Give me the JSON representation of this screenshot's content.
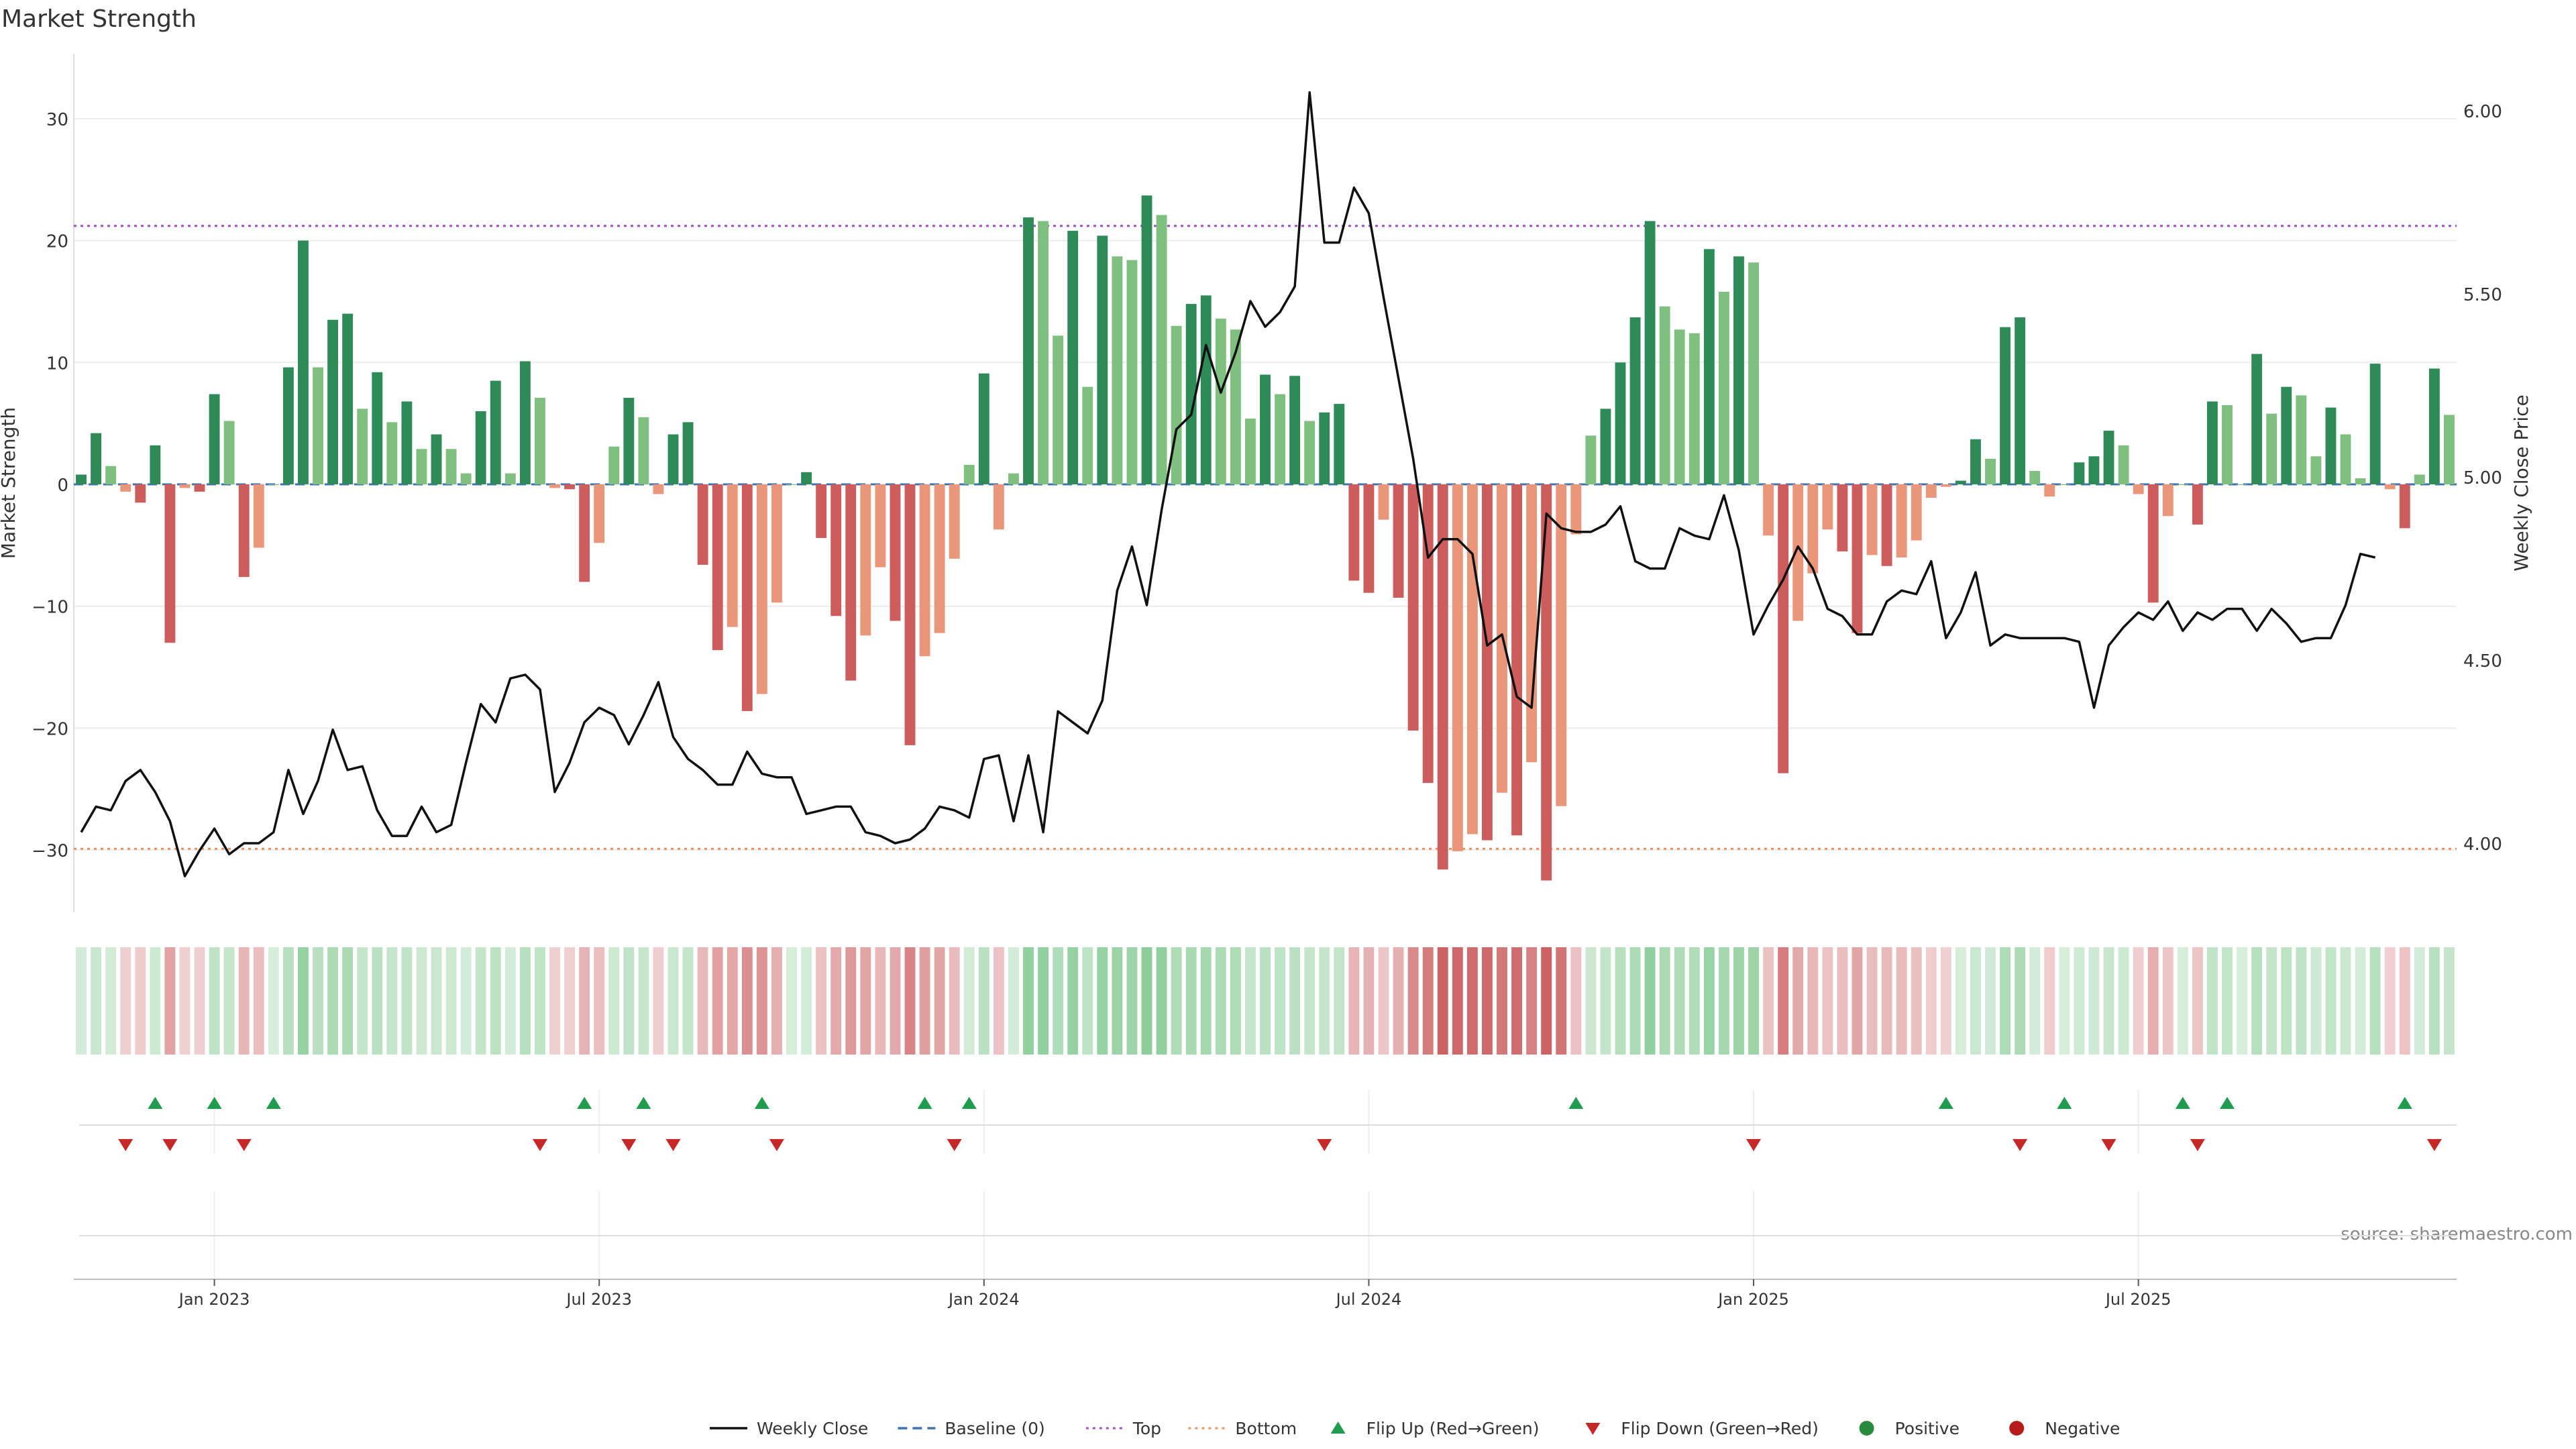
{
  "chart_data": {
    "type": "bar",
    "title": "Market Strength",
    "ylabel": "Market Strength",
    "y2label": "Weekly Close Price",
    "source": "source: sharemaestro.com",
    "ylim": [
      -35,
      35
    ],
    "y2lim": [
      3.8,
      6.15
    ],
    "yticks": [
      30,
      20,
      10,
      0,
      -10,
      -20,
      -30
    ],
    "ytick_labels": [
      "30",
      "20",
      "10",
      "0",
      "−10",
      "−20",
      "−30"
    ],
    "y2ticks": [
      6.0,
      5.5,
      5.0,
      4.5,
      4.0
    ],
    "y2tick_labels": [
      "6.00",
      "5.50",
      "5.00",
      "4.50",
      "4.00"
    ],
    "top_line": 21.2,
    "bottom_line": -29.9,
    "x_ticks": [
      {
        "week": 9,
        "label": "Jan 2023"
      },
      {
        "week": 35,
        "label": "Jul 2023"
      },
      {
        "week": 61,
        "label": "Jan 2024"
      },
      {
        "week": 87,
        "label": "Jul 2024"
      },
      {
        "week": 113,
        "label": "Jan 2025"
      },
      {
        "week": 139,
        "label": "Jul 2025"
      }
    ],
    "strength": [
      0.8,
      4.2,
      1.5,
      -0.6,
      -1.5,
      3.2,
      -13,
      -0.3,
      -0.6,
      7.4,
      5.2,
      -7.6,
      -5.2,
      0,
      9.6,
      20,
      9.6,
      13.5,
      14,
      6.2,
      9.2,
      5.1,
      6.8,
      2.9,
      4.1,
      2.9,
      0.9,
      6,
      8.5,
      0.9,
      10.1,
      7.1,
      -0.3,
      -0.4,
      -8,
      -4.8,
      3.1,
      7.1,
      5.5,
      -0.8,
      4.1,
      5.1,
      -6.6,
      -13.6,
      -11.7,
      -18.6,
      -17.2,
      -9.7,
      0,
      1,
      -4.4,
      -10.8,
      -16.1,
      -12.4,
      -6.8,
      -11.2,
      -21.4,
      -14.1,
      -12.2,
      -6.1,
      1.6,
      9.1,
      -3.7,
      0.9,
      21.9,
      21.6,
      12.2,
      20.8,
      8,
      20.4,
      18.7,
      18.4,
      23.7,
      22.1,
      13,
      14.8,
      15.5,
      13.6,
      12.7,
      5.4,
      9,
      7.4,
      8.9,
      5.2,
      5.9,
      6.6,
      -7.9,
      -8.9,
      -2.9,
      -9.3,
      -20.2,
      -24.5,
      -31.6,
      -30.1,
      -28.7,
      -29.2,
      -25.3,
      -28.8,
      -22.8,
      -32.5,
      -26.4,
      -4.1,
      4,
      6.2,
      10,
      13.7,
      21.6,
      14.6,
      12.7,
      12.4,
      19.3,
      15.8,
      18.7,
      18.2,
      -4.2,
      -23.7,
      -11.2,
      -7.3,
      -3.7,
      -5.5,
      -12.2,
      -5.8,
      -6.7,
      -6,
      -4.6,
      -1.1,
      -0.2,
      0.3,
      3.7,
      2.1,
      12.9,
      13.7,
      1.1,
      -1,
      0,
      1.8,
      2.3,
      4.4,
      3.2,
      -0.8,
      -9.7,
      -2.6,
      0,
      -3.3,
      6.8,
      6.5,
      0,
      10.7,
      5.8,
      8,
      7.3,
      2.3,
      6.3,
      4.1,
      0.5,
      9.9,
      -0.4,
      -3.6,
      0.8,
      9.5,
      5.7
    ],
    "weekly_close": [
      4.03,
      4.1,
      4.09,
      4.17,
      4.2,
      4.14,
      4.06,
      3.91,
      3.98,
      4.04,
      3.97,
      4.0,
      4.0,
      4.03,
      4.2,
      4.08,
      4.17,
      4.31,
      4.2,
      4.21,
      4.09,
      4.02,
      4.02,
      4.1,
      4.03,
      4.05,
      4.22,
      4.38,
      4.33,
      4.45,
      4.46,
      4.42,
      4.14,
      4.22,
      4.33,
      4.37,
      4.35,
      4.27,
      4.35,
      4.44,
      4.29,
      4.23,
      4.2,
      4.16,
      4.16,
      4.25,
      4.19,
      4.18,
      4.18,
      4.08,
      4.09,
      4.1,
      4.1,
      4.03,
      4.02,
      4.0,
      4.01,
      4.04,
      4.1,
      4.09,
      4.07,
      4.23,
      4.24,
      4.06,
      4.24,
      4.03,
      4.36,
      4.33,
      4.3,
      4.39,
      4.69,
      4.81,
      4.65,
      4.91,
      5.13,
      5.17,
      5.36,
      5.23,
      5.34,
      5.48,
      5.41,
      5.45,
      5.52,
      6.05,
      5.64,
      5.64,
      5.79,
      5.72,
      5.49,
      5.27,
      5.05,
      4.78,
      4.83,
      4.83,
      4.79,
      4.54,
      4.57,
      4.4,
      4.37,
      4.9,
      4.86,
      4.85,
      4.85,
      4.87,
      4.92,
      4.77,
      4.75,
      4.75,
      4.86,
      4.84,
      4.83,
      4.95,
      4.8,
      4.57,
      4.65,
      4.72,
      4.81,
      4.75,
      4.64,
      4.62,
      4.57,
      4.57,
      4.66,
      4.69,
      4.68,
      4.77,
      4.56,
      4.63,
      4.74,
      4.54,
      4.57,
      4.56,
      4.56,
      4.56,
      4.56,
      4.55,
      4.37,
      4.54,
      4.59,
      4.63,
      4.61,
      4.66,
      4.58,
      4.63,
      4.61,
      4.64,
      4.64,
      4.58,
      4.64,
      4.6,
      4.55,
      4.56,
      4.56,
      4.65,
      4.79,
      4.78
    ]
  },
  "flip_up_weeks": [
    5,
    9,
    13,
    34,
    38,
    46,
    57,
    60,
    101,
    126,
    134,
    142,
    145,
    157
  ],
  "flip_down_weeks": [
    3,
    6,
    11,
    31,
    37,
    40,
    47,
    59,
    84,
    113,
    131,
    137,
    143,
    159
  ],
  "legend": [
    {
      "label": "Weekly Close",
      "icon": "line",
      "color": "#111111"
    },
    {
      "label": "Baseline (0)",
      "icon": "dash",
      "color": "#3f73b0"
    },
    {
      "label": "Top",
      "icon": "dots",
      "color": "#9b4fc9"
    },
    {
      "label": "Bottom",
      "icon": "dots",
      "color": "#e8935f"
    },
    {
      "label": "Flip Up (Red→Green)",
      "icon": "triangle-up",
      "color": "#1f9c4e"
    },
    {
      "label": "Flip Down (Green→Red)",
      "icon": "triangle-down",
      "color": "#c62828"
    },
    {
      "label": "Positive",
      "icon": "circle",
      "color": "#2a8a3e"
    },
    {
      "label": "Negative",
      "icon": "circle",
      "color": "#b71c1c"
    }
  ],
  "colors": {
    "pos_dark": "#2e8b57",
    "pos_light": "#7fbf7f",
    "neg_dark": "#cd5c5c",
    "neg_light": "#e9967a",
    "close_line": "#111111",
    "baseline": "#3f73b0",
    "top": "#9b4fc9",
    "bottom": "#e8935f",
    "flip_up": "#1f9c4e",
    "flip_down": "#c62828"
  }
}
